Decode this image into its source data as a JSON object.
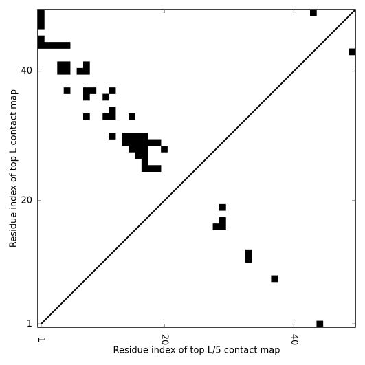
{
  "chart_data": {
    "type": "contact_map",
    "xlabel": "Residue index of top L/5 contact map",
    "ylabel": "Residue index of top L contact map",
    "xlim": [
      0.5,
      49.5
    ],
    "ylim": [
      0.5,
      49.5
    ],
    "xticks": [
      1,
      20,
      40
    ],
    "yticks": [
      1,
      20,
      40
    ],
    "color": "#000000",
    "diagonal": true,
    "contacts": [
      [
        1,
        49
      ],
      [
        1,
        48
      ],
      [
        1,
        47
      ],
      [
        1,
        45
      ],
      [
        1,
        44
      ],
      [
        2,
        44
      ],
      [
        3,
        44
      ],
      [
        4,
        44
      ],
      [
        5,
        44
      ],
      [
        4,
        41
      ],
      [
        5,
        41
      ],
      [
        4,
        40
      ],
      [
        5,
        40
      ],
      [
        8,
        41
      ],
      [
        7,
        40
      ],
      [
        8,
        40
      ],
      [
        5,
        37
      ],
      [
        8,
        37
      ],
      [
        9,
        37
      ],
      [
        8,
        36
      ],
      [
        11,
        36
      ],
      [
        12,
        37
      ],
      [
        12,
        34
      ],
      [
        12,
        33
      ],
      [
        11,
        33
      ],
      [
        8,
        33
      ],
      [
        15,
        33
      ],
      [
        12,
        30
      ],
      [
        14,
        30
      ],
      [
        15,
        30
      ],
      [
        16,
        30
      ],
      [
        17,
        30
      ],
      [
        14,
        29
      ],
      [
        15,
        29
      ],
      [
        16,
        29
      ],
      [
        17,
        29
      ],
      [
        18,
        29
      ],
      [
        19,
        29
      ],
      [
        15,
        28
      ],
      [
        16,
        28
      ],
      [
        17,
        28
      ],
      [
        20,
        28
      ],
      [
        16,
        27
      ],
      [
        17,
        27
      ],
      [
        17,
        26
      ],
      [
        17,
        25
      ],
      [
        18,
        25
      ],
      [
        19,
        25
      ],
      [
        43,
        49
      ],
      [
        49,
        43
      ],
      [
        29,
        19
      ],
      [
        29,
        17
      ],
      [
        28,
        16
      ],
      [
        29,
        16
      ],
      [
        33,
        12
      ],
      [
        33,
        11
      ],
      [
        37,
        8
      ],
      [
        44,
        1
      ]
    ]
  }
}
